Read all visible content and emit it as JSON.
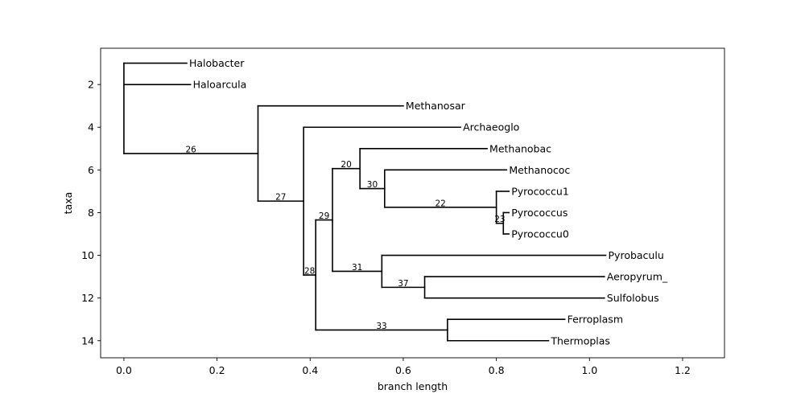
{
  "chart_data": {
    "type": "phylogenetic-tree",
    "xlabel": "branch length",
    "ylabel": "taxa",
    "xlim": [
      -0.05,
      1.29
    ],
    "ylim": [
      14.8,
      0.3
    ],
    "x_ticks": [
      "0.0",
      "0.2",
      "0.4",
      "0.6",
      "0.8",
      "1.0",
      "1.2"
    ],
    "y_ticks": [
      "2",
      "4",
      "6",
      "8",
      "10",
      "12",
      "14"
    ],
    "leaves": [
      {
        "id": "L1",
        "name": "Halobacter",
        "y": 1,
        "x": 0.135
      },
      {
        "id": "L2",
        "name": "Haloarcula",
        "y": 2,
        "x": 0.143
      },
      {
        "id": "L3",
        "name": "Methanosar",
        "y": 3,
        "x": 0.6
      },
      {
        "id": "L4",
        "name": "Archaeoglo",
        "y": 4,
        "x": 0.723
      },
      {
        "id": "L5",
        "name": "Methanobac",
        "y": 5,
        "x": 0.78
      },
      {
        "id": "L6",
        "name": "Methanococ",
        "y": 6,
        "x": 0.822
      },
      {
        "id": "L7",
        "name": "Pyrococcu1",
        "y": 7,
        "x": 0.827
      },
      {
        "id": "L8",
        "name": "Pyrococcus",
        "y": 8,
        "x": 0.827
      },
      {
        "id": "L9",
        "name": "Pyrococcu0",
        "y": 9,
        "x": 0.827
      },
      {
        "id": "L10",
        "name": "Pyrobaculu",
        "y": 10,
        "x": 1.035
      },
      {
        "id": "L11",
        "name": "Aeropyrum_",
        "y": 11,
        "x": 1.032
      },
      {
        "id": "L12",
        "name": "Sulfolobus",
        "y": 12,
        "x": 1.032
      },
      {
        "id": "L13",
        "name": "Ferroplasm",
        "y": 13,
        "x": 0.947
      },
      {
        "id": "L14",
        "name": "Thermoplas",
        "y": 14,
        "x": 0.912
      }
    ],
    "internal_nodes": [
      {
        "id": "N_root",
        "x": 0.0,
        "parent": null,
        "children": [
          "L1",
          "L2",
          "N26"
        ],
        "label": ""
      },
      {
        "id": "N26",
        "x": 0.288,
        "parent": "N_root",
        "children": [
          "L3",
          "N27"
        ],
        "label": "26"
      },
      {
        "id": "N27",
        "x": 0.386,
        "parent": "N26",
        "children": [
          "L4",
          "N28"
        ],
        "label": "27"
      },
      {
        "id": "N28",
        "x": 0.412,
        "parent": "N27",
        "children": [
          "N29",
          "N33"
        ],
        "label": "28"
      },
      {
        "id": "N29",
        "x": 0.448,
        "parent": "N28",
        "children": [
          "N20",
          "N31"
        ],
        "label": "29"
      },
      {
        "id": "N20",
        "x": 0.507,
        "parent": "N29",
        "children": [
          "L5",
          "N30"
        ],
        "label": "20"
      },
      {
        "id": "N30",
        "x": 0.56,
        "parent": "N20",
        "children": [
          "L6",
          "N22"
        ],
        "label": "30"
      },
      {
        "id": "N22",
        "x": 0.8,
        "parent": "N30",
        "children": [
          "L7",
          "N23"
        ],
        "label": "22"
      },
      {
        "id": "N23",
        "x": 0.815,
        "parent": "N22",
        "children": [
          "L8",
          "L9"
        ],
        "label": "23"
      },
      {
        "id": "N31",
        "x": 0.554,
        "parent": "N29",
        "children": [
          "L10",
          "N37"
        ],
        "label": "31"
      },
      {
        "id": "N37",
        "x": 0.646,
        "parent": "N31",
        "children": [
          "L11",
          "L12"
        ],
        "label": "37"
      },
      {
        "id": "N33",
        "x": 0.695,
        "parent": "N28",
        "children": [
          "L13",
          "L14"
        ],
        "label": "33"
      }
    ]
  }
}
